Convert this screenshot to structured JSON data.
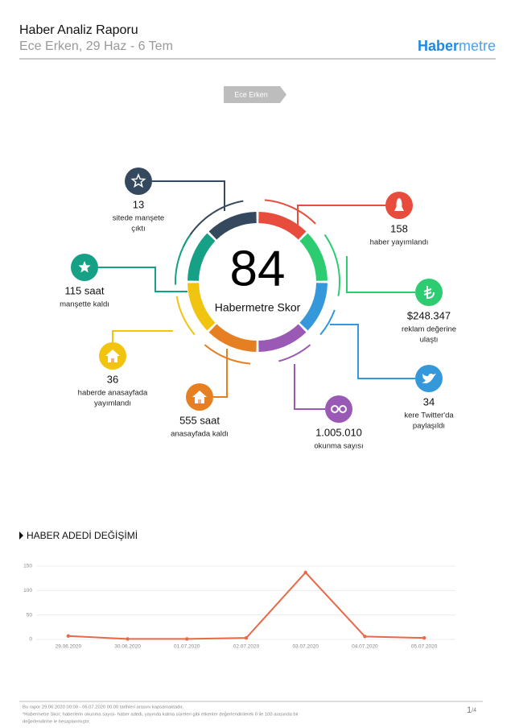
{
  "header": {
    "title": "Haber Analiz Raporu",
    "subtitle": "Ece Erken, 29 Haz - 6 Tem",
    "brand": {
      "bold": "Haber",
      "light": "metre"
    }
  },
  "tag": "Ece Erken",
  "score": {
    "value": "84",
    "label": "Habermetre Skor"
  },
  "stats": [
    {
      "value": "13",
      "lines": [
        "sitede manşete",
        "çıktı"
      ],
      "color": "#34495e"
    },
    {
      "value": "158",
      "lines": [
        "haber yayımlandı"
      ],
      "color": "#e74c3c"
    },
    {
      "value": "$248.347",
      "lines": [
        "reklam değerine",
        "ulaştı"
      ],
      "color": "#2ecc71"
    },
    {
      "value": "34",
      "lines": [
        "kere Twitter'da",
        "paylaşıldı"
      ],
      "color": "#3498db"
    },
    {
      "value": "1.005.010",
      "lines": [
        "okunma sayısı"
      ],
      "color": "#9b59b6"
    },
    {
      "value": "555 saat",
      "lines": [
        "anasayfada kaldı"
      ],
      "color": "#e67e22"
    },
    {
      "value": "36",
      "lines": [
        "haberde anasayfada",
        "yayımlandı"
      ],
      "color": "#f1c40f"
    },
    {
      "value": "115 saat",
      "lines": [
        "manşette kaldı"
      ],
      "color": "#16a085"
    }
  ],
  "section_title": "HABER ADEDİ DEĞİŞİMİ",
  "chart_data": {
    "type": "line",
    "categories": [
      "29.06.2020",
      "30.06.2020",
      "01.07.2020",
      "02.07.2020",
      "03.07.2020",
      "04.07.2020",
      "05.07.2020"
    ],
    "values": [
      7,
      1,
      1,
      3,
      137,
      6,
      3
    ],
    "color": "#e8694a",
    "ylim": [
      0,
      150
    ],
    "yticks": [
      0,
      50,
      100,
      150
    ],
    "grid": true
  },
  "footer": {
    "lines": [
      "Bu rapor 29.06.2020 00:00 - 06.07.2020 00:00 tarihleri arasını kapsamaktadır.",
      "*Habermetre Skor; haberlerin okunma sayısı- haber adedi, yayında kalma süreleri gibi etkenler değerlendirilerek 0 ile 100 arasında bir",
      "değerlendirme ie hesaplanmıştır."
    ],
    "page": "1",
    "page_total": "/4"
  }
}
